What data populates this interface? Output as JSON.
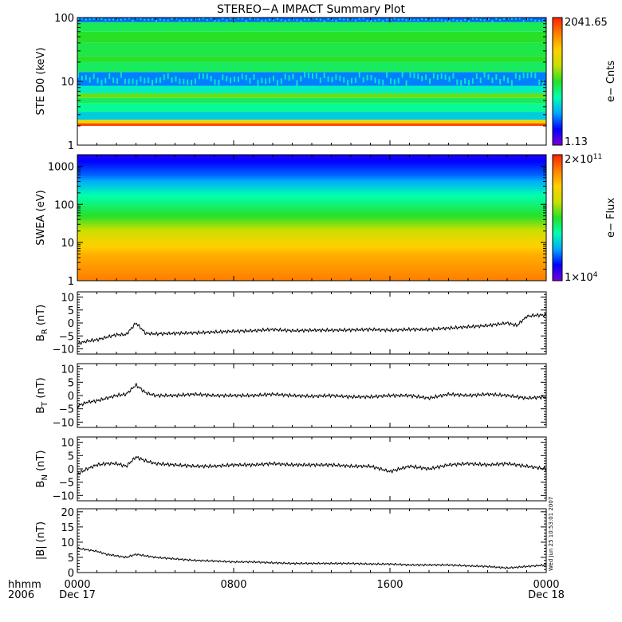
{
  "title": "STEREO−A IMPACT Summary Plot",
  "time_axis": {
    "corner_top": "hhmm",
    "corner_bottom": "2006",
    "ticks": [
      {
        "hour": 0,
        "label": "0000",
        "date": "Dec 17"
      },
      {
        "hour": 8,
        "label": "0800",
        "date": ""
      },
      {
        "hour": 16,
        "label": "1600",
        "date": ""
      },
      {
        "hour": 24,
        "label": "0000",
        "date": "Dec 18"
      }
    ]
  },
  "stamp": "Wed Jun 25 10:53:01 2007",
  "colors": {
    "colormap": [
      "#7a00d6",
      "#0000ff",
      "#00a8ff",
      "#00ffb0",
      "#28e028",
      "#c8e000",
      "#ffd000",
      "#ff8000",
      "#ff2000"
    ]
  },
  "chart_data": [
    {
      "type": "heatmap",
      "ylabel": "STE D0 (keV)",
      "yscale": "log",
      "ylim": [
        1,
        100
      ],
      "ytick_labels": [
        "100",
        "10",
        "1"
      ],
      "colorbar": {
        "title": "e− Cnts",
        "max_label": "2041.65",
        "min_label": "1.13",
        "max": 2041.65,
        "min": 1.13
      },
      "data_range_y": [
        2,
        100
      ],
      "bands": [
        {
          "energy_low": 2,
          "energy_high": 2.2,
          "level": 0.95
        },
        {
          "energy_low": 2.2,
          "energy_high": 2.5,
          "level": 0.7
        },
        {
          "energy_low": 2.5,
          "energy_high": 3.3,
          "level": 0.3
        },
        {
          "energy_low": 3.3,
          "energy_high": 4.5,
          "level": 0.4
        },
        {
          "energy_low": 4.5,
          "energy_high": 5.5,
          "level": 0.45
        },
        {
          "energy_low": 5.5,
          "energy_high": 6.5,
          "level": 0.55
        },
        {
          "energy_low": 6.5,
          "energy_high": 8.5,
          "level": 0.35
        },
        {
          "energy_low": 8.5,
          "energy_high": 14,
          "level": 0.22
        },
        {
          "energy_low": 14,
          "energy_high": 20,
          "level": 0.45
        },
        {
          "energy_low": 20,
          "energy_high": 25,
          "level": 0.5
        },
        {
          "energy_low": 25,
          "energy_high": 40,
          "level": 0.47
        },
        {
          "energy_low": 40,
          "energy_high": 60,
          "level": 0.5
        },
        {
          "energy_low": 60,
          "energy_high": 85,
          "level": 0.46
        },
        {
          "energy_low": 85,
          "energy_high": 100,
          "level": 0.2
        }
      ]
    },
    {
      "type": "heatmap",
      "ylabel": "SWEA (eV)",
      "yscale": "log",
      "ylim": [
        1,
        2000
      ],
      "ytick_labels": [
        "1000",
        "100",
        "10",
        "1"
      ],
      "colorbar": {
        "title": "e− Flux",
        "max_label": "2×10",
        "max_exp": "11",
        "min_label": "1×10",
        "min_exp": "4"
      },
      "profile": [
        {
          "energy": 1,
          "level": 0.88
        },
        {
          "energy": 5,
          "level": 0.8
        },
        {
          "energy": 15,
          "level": 0.68
        },
        {
          "energy": 50,
          "level": 0.5
        },
        {
          "energy": 200,
          "level": 0.36
        },
        {
          "energy": 600,
          "level": 0.2
        },
        {
          "energy": 1800,
          "level": 0.1
        }
      ]
    },
    {
      "type": "line",
      "ylabel": "B",
      "ylabel_sub": "R",
      "yunit": "(nT)",
      "ylim": [
        -12,
        12
      ],
      "ytick_labels": [
        "10",
        "5",
        "0",
        "−5",
        "−10"
      ],
      "ytick_values": [
        10,
        5,
        0,
        -5,
        -10
      ],
      "hours": [
        0,
        0.5,
        1,
        1.5,
        2,
        2.5,
        3,
        3.5,
        4,
        5,
        6,
        7,
        8,
        9,
        10,
        11,
        12,
        13,
        14,
        15,
        16,
        17,
        18,
        19,
        20,
        21,
        22,
        22.5,
        23,
        23.5,
        24
      ],
      "values": [
        -8,
        -7,
        -6.5,
        -5.5,
        -4.5,
        -4.5,
        0,
        -4,
        -4.2,
        -4,
        -3.8,
        -3.5,
        -3.2,
        -3,
        -2.5,
        -3,
        -2.8,
        -2.8,
        -2.7,
        -2.5,
        -2.8,
        -2.5,
        -2.5,
        -2,
        -1.5,
        -1,
        0,
        -1,
        2.5,
        3,
        3
      ]
    },
    {
      "type": "line",
      "ylabel": "B",
      "ylabel_sub": "T",
      "yunit": "(nT)",
      "ylim": [
        -12,
        12
      ],
      "ytick_labels": [
        "10",
        "5",
        "0",
        "−5",
        "−10"
      ],
      "ytick_values": [
        10,
        5,
        0,
        -5,
        -10
      ],
      "hours": [
        0,
        0.5,
        1,
        1.5,
        2,
        2.5,
        3,
        3.5,
        4,
        5,
        6,
        7,
        8,
        9,
        10,
        11,
        12,
        13,
        14,
        15,
        16,
        17,
        18,
        19,
        20,
        21,
        22,
        23,
        24
      ],
      "values": [
        -4,
        -2.5,
        -2,
        -1,
        0,
        0.5,
        4,
        1,
        0,
        0,
        0.5,
        0,
        0,
        0,
        0.5,
        0,
        -0.3,
        0,
        -0.5,
        -0.5,
        0,
        0,
        -1,
        0.5,
        0,
        0.5,
        0,
        -1,
        -0.5
      ]
    },
    {
      "type": "line",
      "ylabel": "B",
      "ylabel_sub": "N",
      "yunit": "(nT)",
      "ylim": [
        -12,
        12
      ],
      "ytick_labels": [
        "10",
        "5",
        "0",
        "−5",
        "−10"
      ],
      "ytick_values": [
        10,
        5,
        0,
        -5,
        -10
      ],
      "hours": [
        0,
        0.5,
        1,
        1.5,
        2,
        2.5,
        3,
        3.5,
        4,
        5,
        6,
        7,
        8,
        9,
        10,
        11,
        12,
        13,
        14,
        15,
        16,
        17,
        18,
        19,
        20,
        21,
        22,
        23,
        24
      ],
      "values": [
        -2,
        0,
        1.5,
        2,
        2,
        1,
        4.5,
        3,
        2,
        1.5,
        1,
        1,
        1.5,
        1.5,
        2,
        1.5,
        1.5,
        1.5,
        1,
        1,
        -1,
        1,
        0,
        1.5,
        2,
        1.5,
        2,
        1,
        0
      ]
    },
    {
      "type": "line",
      "ylabel": "|B| (nT)",
      "ylim": [
        0,
        21
      ],
      "ytick_labels": [
        "20",
        "15",
        "10",
        "5",
        "0"
      ],
      "ytick_values": [
        20,
        15,
        10,
        5,
        0
      ],
      "hours": [
        0,
        0.5,
        1,
        1.5,
        2,
        2.5,
        3,
        3.5,
        4,
        5,
        6,
        7,
        8,
        9,
        10,
        11,
        12,
        13,
        14,
        15,
        16,
        17,
        18,
        19,
        20,
        21,
        22,
        23,
        24
      ],
      "values": [
        8,
        7.5,
        7,
        6,
        5.5,
        5,
        6,
        5.5,
        5,
        4.5,
        4,
        3.8,
        3.5,
        3.5,
        3.2,
        3,
        3,
        3,
        3,
        2.8,
        2.8,
        2.5,
        2.5,
        2.5,
        2.2,
        2,
        1.5,
        2,
        2.5
      ]
    }
  ]
}
